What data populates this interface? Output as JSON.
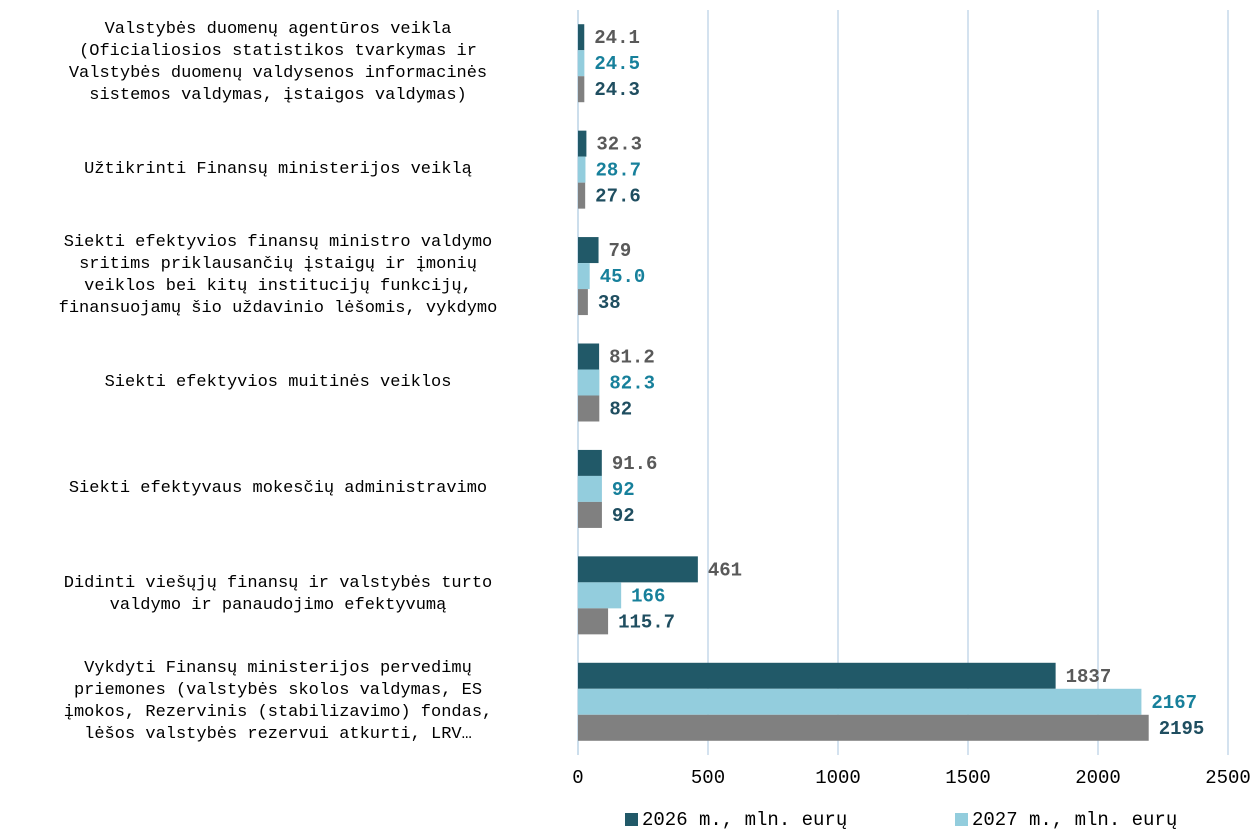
{
  "chart_data": {
    "type": "bar",
    "orientation": "horizontal",
    "categories": [
      "Valstybės duomenų agentūros veikla\n(Oficialiosios statistikos tvarkymas ir\nValstybės duomenų valdysenos informacinės\nsistemos valdymas, įstaigos valdymas)",
      "Užtikrinti Finansų ministerijos veiklą",
      "Siekti efektyvios finansų ministro valdymo\nsritims priklausančių įstaigų ir įmonių\nveiklos bei kitų  institucijų funkcijų,\nfinansuojamų šio uždavinio lėšomis, vykdymo",
      "Siekti efektyvios muitinės veiklos",
      "Siekti efektyvaus mokesčių administravimo",
      "Didinti viešųjų finansų ir valstybės turto\nvaldymo ir panaudojimo efektyvumą",
      "Vykdyti Finansų ministerijos pervedimų\npriemones (valstybės skolos valdymas, ES\nįmokos, Rezervinis (stabilizavimo) fondas,\nlėšos valstybės rezervui atkurti,  LRV…"
    ],
    "series": [
      {
        "name": "2026 m., mln. eurų",
        "color": "#215968",
        "label_color": "#595959",
        "values": [
          24.1,
          32.3,
          79,
          81.2,
          91.6,
          461,
          1837
        ],
        "value_labels": [
          "24.1",
          "32.3",
          "79",
          "81.2",
          "91.6",
          "461",
          "1837"
        ]
      },
      {
        "name": "2027 m., mln. eurų",
        "color": "#93cddd",
        "label_color": "#17809b",
        "values": [
          24.5,
          28.7,
          45.0,
          82.3,
          92,
          166,
          2167
        ],
        "value_labels": [
          "24.5",
          "28.7",
          "45.0",
          "82.3",
          "92",
          "166",
          "2167"
        ]
      },
      {
        "color": "#808080",
        "label_color": "#1f4e60",
        "values": [
          24.3,
          27.6,
          38,
          82,
          92,
          115.7,
          2195
        ],
        "value_labels": [
          "24.3",
          "27.6",
          "38",
          "82",
          "92",
          "115.7",
          "2195"
        ]
      }
    ],
    "xlim": [
      0,
      2500
    ],
    "xticks": [
      0,
      500,
      1000,
      1500,
      2000,
      2500
    ],
    "grid": true,
    "legend": "bottom"
  }
}
